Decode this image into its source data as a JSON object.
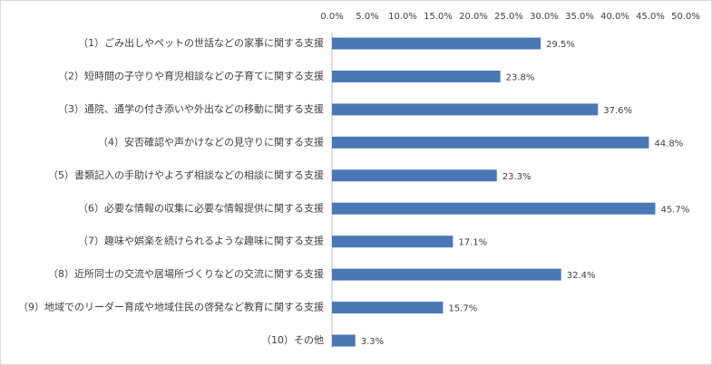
{
  "chart_data": {
    "type": "bar",
    "orientation": "horizontal",
    "categories": [
      "（1）ごみ出しやペットの世話などの家事に関する支援",
      "（2）短時間の子守りや育児相談などの子育てに関する支援",
      "（3）通院、通学の付き添いや外出などの移動に関する支援",
      "（4）安否確認や声かけなどの見守りに関する支援",
      "（5）書類記入の手助けやよろず相談などの相談に関する支援",
      "（6）必要な情報の収集に必要な情報提供に関する支援",
      "（7）趣味や娯楽を続けられるような趣味に関する支援",
      "（8）近所同士の交流や居場所づくりなどの交流に関する支援",
      "（9）地域でのリーダー育成や地域住民の啓発など教育に関する支援",
      "（10）その他"
    ],
    "values": [
      29.5,
      23.8,
      37.6,
      44.8,
      23.3,
      45.7,
      17.1,
      32.4,
      15.7,
      3.3
    ],
    "data_labels": [
      "29.5%",
      "23.8%",
      "37.6%",
      "44.8%",
      "23.3%",
      "45.7%",
      "17.1%",
      "32.4%",
      "15.7%",
      "3.3%"
    ],
    "xlim": [
      0,
      50
    ],
    "x_ticks": [
      0,
      5,
      10,
      15,
      20,
      25,
      30,
      35,
      40,
      45,
      50
    ],
    "x_tick_labels": [
      "0.0%",
      "5.0%",
      "10.0%",
      "15.0%",
      "20.0%",
      "25.0%",
      "30.0%",
      "35.0%",
      "40.0%",
      "45.0%",
      "50.0%"
    ],
    "x_axis_position": "top",
    "grid": false,
    "legend": "none",
    "title": "",
    "xlabel": "",
    "ylabel": "",
    "colors": {
      "bar": "#4a78b7",
      "text": "#404040",
      "axis": "#bfbfbf",
      "frame": "#d9d9d9"
    }
  }
}
